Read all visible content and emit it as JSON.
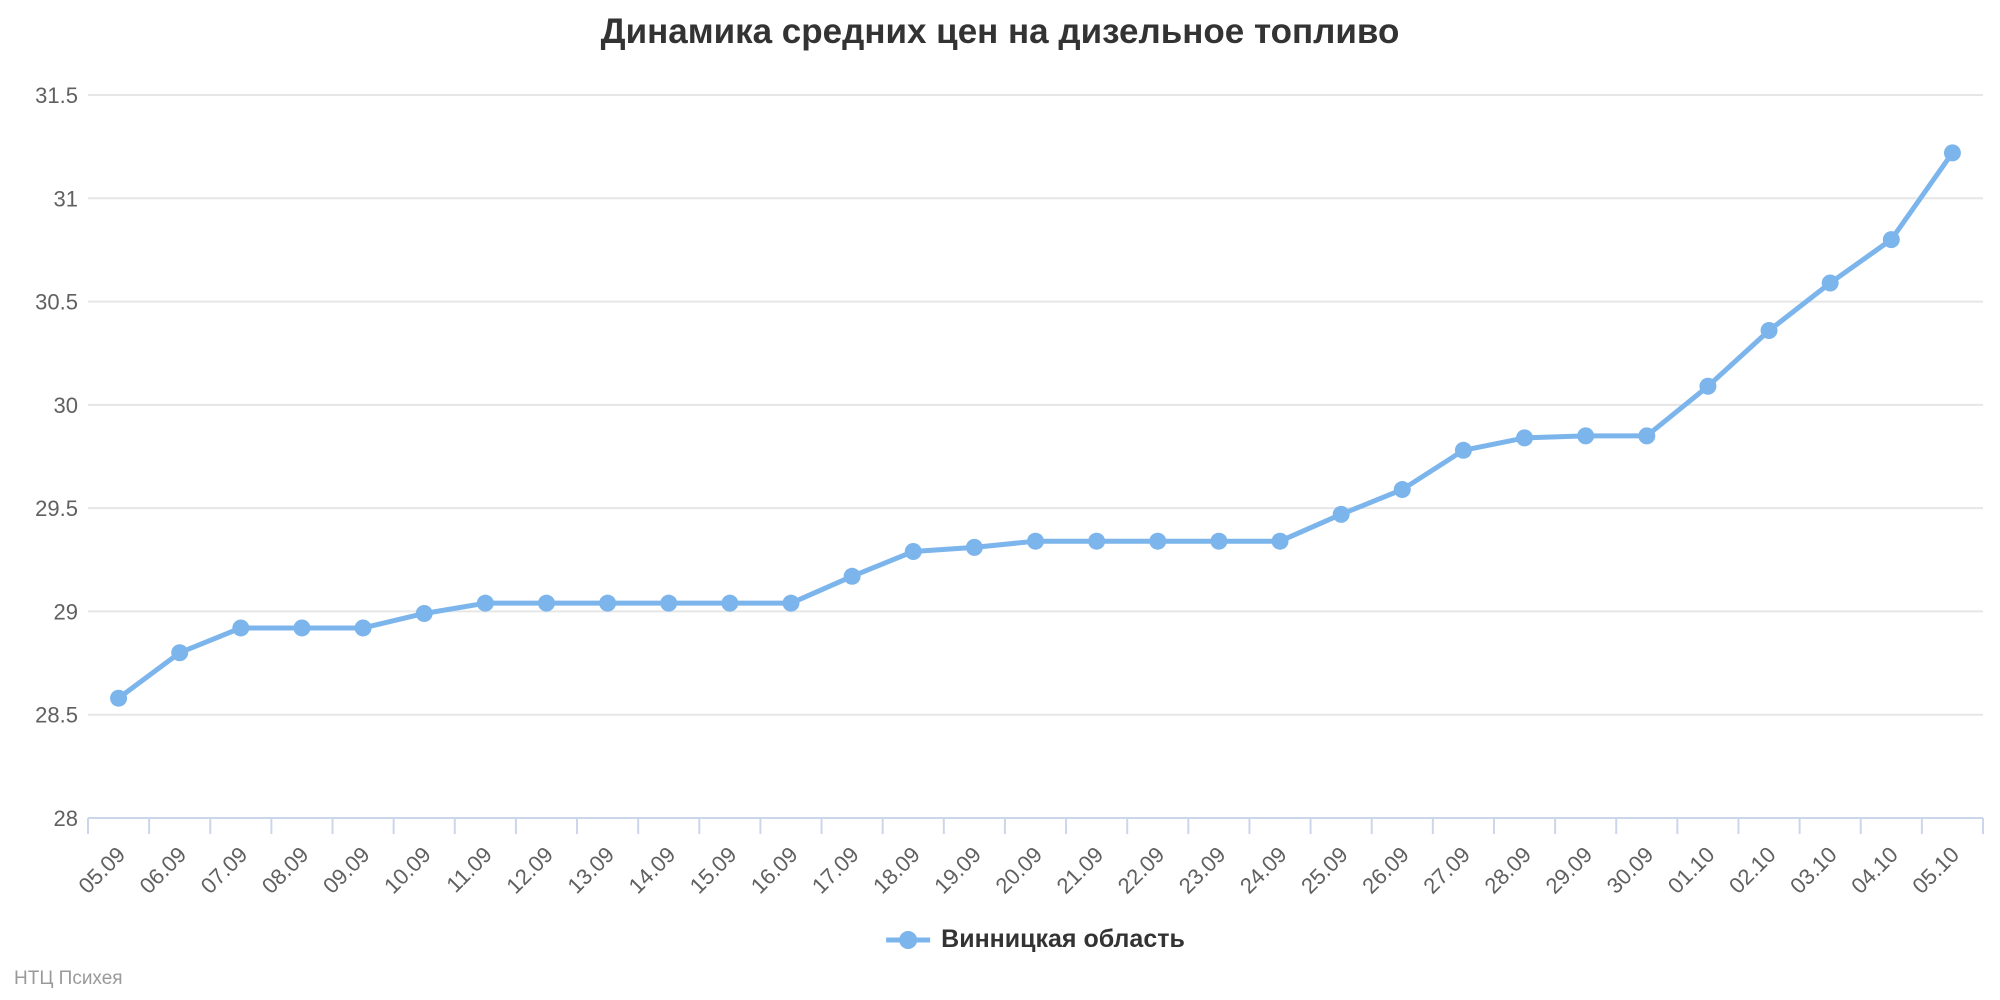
{
  "header": {
    "title": "Динамика средних цен на дизельное топливо"
  },
  "legend": {
    "items": [
      {
        "label": "Винницкая область",
        "color": "#7cb5ec"
      }
    ]
  },
  "credits": {
    "text": "НТЦ Психея"
  },
  "chart_data": {
    "type": "line",
    "title": "Динамика средних цен на дизельное топливо",
    "xlabel": "",
    "ylabel": "",
    "categories": [
      "05.09",
      "06.09",
      "07.09",
      "08.09",
      "09.09",
      "10.09",
      "11.09",
      "12.09",
      "13.09",
      "14.09",
      "15.09",
      "16.09",
      "17.09",
      "18.09",
      "19.09",
      "20.09",
      "21.09",
      "22.09",
      "23.09",
      "24.09",
      "25.09",
      "26.09",
      "27.09",
      "28.09",
      "29.09",
      "30.09",
      "01.10",
      "02.10",
      "03.10",
      "04.10",
      "05.10"
    ],
    "series": [
      {
        "name": "Винницкая область",
        "color": "#7cb5ec",
        "values": [
          28.58,
          28.8,
          28.92,
          28.92,
          28.92,
          28.99,
          29.04,
          29.04,
          29.04,
          29.04,
          29.04,
          29.04,
          29.17,
          29.29,
          29.31,
          29.34,
          29.34,
          29.34,
          29.34,
          29.34,
          29.47,
          29.59,
          29.78,
          29.84,
          29.85,
          29.85,
          30.09,
          30.36,
          30.59,
          30.8,
          31.22
        ]
      }
    ],
    "ylim": [
      28,
      31.5
    ],
    "yticks": [
      28,
      28.5,
      29,
      29.5,
      30,
      30.5,
      31,
      31.5
    ],
    "grid": true,
    "legend_position": "bottom-center",
    "colors": {
      "gridline": "#e6e6e6",
      "axis_line": "#ccd6eb",
      "tick": "#ccd6eb",
      "axis_label": "#606060",
      "title_text": "#333333",
      "legend_text": "#333333",
      "credits_text": "#9a9a9a"
    }
  }
}
